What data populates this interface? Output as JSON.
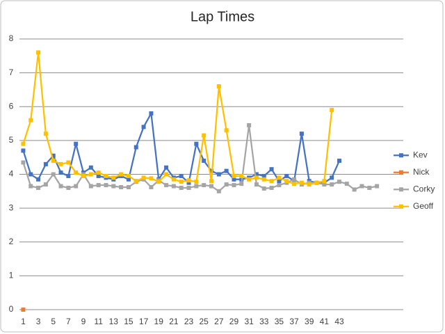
{
  "chart_data": {
    "type": "line",
    "title": "Lap Times",
    "categories": [
      "1",
      null,
      "3",
      null,
      "5",
      null,
      "7",
      null,
      "9",
      null,
      "11",
      null,
      "13",
      null,
      "15",
      null,
      "17",
      null,
      "19",
      null,
      "21",
      null,
      "23",
      null,
      "25",
      null,
      "27",
      null,
      "29",
      null,
      "31",
      null,
      "33",
      null,
      "35",
      null,
      "37",
      null,
      "39",
      null,
      "41",
      null,
      "43",
      null,
      null,
      null,
      null,
      null,
      null,
      null,
      null
    ],
    "series": [
      {
        "name": "Kev",
        "color": "#4472c4",
        "values": [
          4.7,
          4.0,
          3.85,
          4.3,
          4.55,
          4.05,
          3.95,
          4.9,
          4.05,
          4.2,
          3.95,
          3.9,
          3.85,
          3.95,
          3.85,
          4.8,
          5.4,
          5.8,
          3.85,
          4.2,
          3.9,
          3.95,
          3.75,
          4.9,
          4.4,
          4.1,
          4.0,
          4.1,
          3.85,
          3.85,
          3.9,
          4.0,
          3.95,
          4.15,
          3.8,
          3.95,
          3.8,
          5.2,
          3.8,
          3.75,
          3.75,
          3.9,
          4.4,
          null,
          null,
          null,
          null,
          null,
          null,
          null,
          null
        ]
      },
      {
        "name": "Nick",
        "color": "#ed7d31",
        "values": [
          0,
          null,
          null,
          null,
          null,
          null,
          null,
          null,
          null,
          null,
          null,
          null,
          null,
          null,
          null,
          null,
          null,
          null,
          null,
          null,
          null,
          null,
          null,
          null,
          null,
          null,
          null,
          null,
          null,
          null,
          null,
          null,
          null,
          null,
          null,
          null,
          null,
          null,
          null,
          null,
          null,
          null,
          null,
          null,
          null,
          null,
          null,
          null,
          null,
          null,
          null
        ]
      },
      {
        "name": "Corky",
        "color": "#a5a5a5",
        "values": [
          4.35,
          3.65,
          3.6,
          3.7,
          4.0,
          3.65,
          3.6,
          3.65,
          4.0,
          3.65,
          3.68,
          3.68,
          3.65,
          3.62,
          3.62,
          3.78,
          3.85,
          3.62,
          3.82,
          3.68,
          3.65,
          3.6,
          3.6,
          3.65,
          3.68,
          3.65,
          3.5,
          3.7,
          3.68,
          3.72,
          5.45,
          3.7,
          3.58,
          3.6,
          3.68,
          3.75,
          3.85,
          3.7,
          3.75,
          3.75,
          3.7,
          3.7,
          3.78,
          3.72,
          3.55,
          3.65,
          3.6,
          3.65,
          null,
          null,
          null
        ]
      },
      {
        "name": "Geoff",
        "color": "#ffc000",
        "values": [
          4.9,
          5.6,
          7.6,
          5.2,
          4.4,
          4.3,
          4.35,
          4.05,
          3.95,
          4.0,
          4.05,
          3.95,
          3.9,
          4.0,
          3.95,
          3.8,
          3.9,
          3.88,
          3.78,
          4.0,
          3.85,
          3.78,
          3.82,
          3.78,
          5.15,
          3.8,
          6.6,
          5.3,
          3.95,
          3.95,
          3.85,
          3.9,
          3.85,
          3.8,
          3.9,
          3.8,
          3.72,
          3.75,
          3.7,
          3.75,
          3.8,
          5.9,
          null,
          null,
          null,
          null,
          null,
          null,
          null,
          null,
          null
        ]
      }
    ],
    "ylim": [
      0,
      8
    ],
    "yticks": [
      0,
      1,
      2,
      3,
      4,
      5,
      6,
      7,
      8
    ],
    "grid": true,
    "legend": "right"
  }
}
